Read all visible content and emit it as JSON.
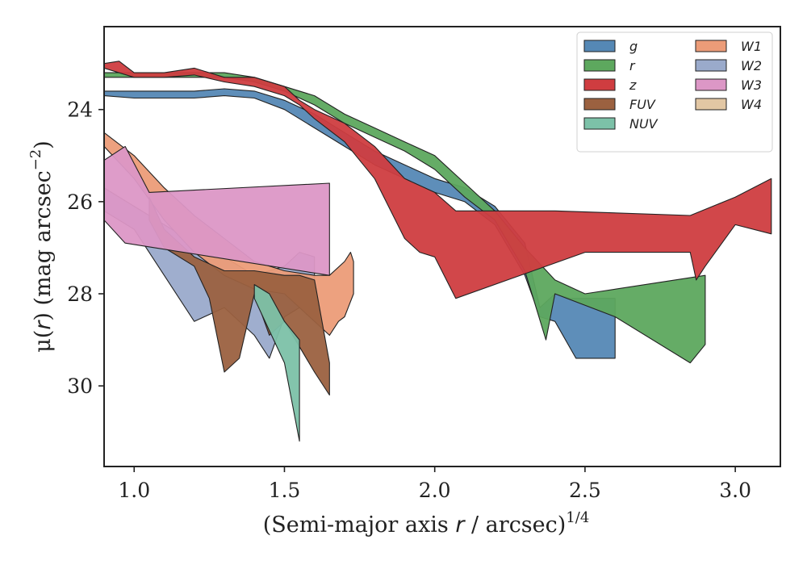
{
  "chart_data": {
    "type": "area",
    "title": "",
    "xlabel_parts": {
      "pre": "(Semi-major axis ",
      "var": "r",
      "post": " / arcsec)",
      "sup": "1/4"
    },
    "ylabel_parts": {
      "pre": "μ(",
      "var": "r",
      "post": ") (mag arcsec",
      "sup": "−2",
      "end": ")"
    },
    "xlim": [
      0.9,
      3.15
    ],
    "ylim": [
      31.75,
      22.2
    ],
    "y_inverted": true,
    "x_ticks": [
      1.0,
      1.5,
      2.0,
      2.5,
      3.0
    ],
    "x_tick_labels": [
      "1.0",
      "1.5",
      "2.0",
      "2.5",
      "3.0"
    ],
    "y_ticks": [
      24,
      26,
      28,
      30
    ],
    "y_tick_labels": [
      "24",
      "26",
      "28",
      "30"
    ],
    "grid": false,
    "legend": {
      "placement": "top-right",
      "columns": 2
    },
    "series": [
      {
        "name": "W4",
        "color": "#e2c7a4",
        "upper": [],
        "lower": []
      },
      {
        "name": "W2",
        "color": "#9aaacb",
        "upper": [
          [
            0.9,
            25.7
          ],
          [
            1.0,
            26.1
          ],
          [
            1.1,
            26.5
          ],
          [
            1.2,
            26.9
          ],
          [
            1.3,
            27.2
          ],
          [
            1.4,
            27.6
          ],
          [
            1.45,
            27.5
          ],
          [
            1.5,
            27.4
          ],
          [
            1.55,
            27.1
          ],
          [
            1.6,
            27.2
          ]
        ],
        "lower": [
          [
            1.6,
            28.0
          ],
          [
            1.55,
            28.3
          ],
          [
            1.5,
            28.5
          ],
          [
            1.45,
            29.4
          ],
          [
            1.4,
            28.9
          ],
          [
            1.3,
            28.3
          ],
          [
            1.2,
            28.6
          ],
          [
            1.1,
            27.6
          ],
          [
            1.0,
            26.6
          ],
          [
            0.9,
            26.2
          ]
        ]
      },
      {
        "name": "W1",
        "color": "#ec9c78",
        "upper": [
          [
            0.9,
            24.5
          ],
          [
            1.0,
            25.0
          ],
          [
            1.1,
            25.7
          ],
          [
            1.2,
            26.3
          ],
          [
            1.3,
            26.8
          ],
          [
            1.4,
            27.3
          ],
          [
            1.5,
            27.5
          ],
          [
            1.6,
            27.6
          ],
          [
            1.65,
            27.6
          ],
          [
            1.7,
            27.3
          ],
          [
            1.72,
            27.1
          ],
          [
            1.73,
            27.3
          ]
        ],
        "lower": [
          [
            1.73,
            28.0
          ],
          [
            1.7,
            28.5
          ],
          [
            1.68,
            28.6
          ],
          [
            1.65,
            28.9
          ],
          [
            1.6,
            28.6
          ],
          [
            1.5,
            28.0
          ],
          [
            1.4,
            27.9
          ],
          [
            1.3,
            27.6
          ],
          [
            1.2,
            27.1
          ],
          [
            1.1,
            26.4
          ],
          [
            1.0,
            25.5
          ],
          [
            0.9,
            24.8
          ]
        ]
      },
      {
        "name": "FUV",
        "color": "#9b6140",
        "upper": [
          [
            1.05,
            25.9
          ],
          [
            1.1,
            26.6
          ],
          [
            1.2,
            27.2
          ],
          [
            1.3,
            27.5
          ],
          [
            1.4,
            27.5
          ],
          [
            1.5,
            27.6
          ],
          [
            1.55,
            27.6
          ],
          [
            1.6,
            27.7
          ],
          [
            1.65,
            29.5
          ]
        ],
        "lower": [
          [
            1.65,
            30.2
          ],
          [
            1.6,
            29.7
          ],
          [
            1.5,
            28.6
          ],
          [
            1.45,
            28.9
          ],
          [
            1.4,
            28.0
          ],
          [
            1.35,
            29.4
          ],
          [
            1.3,
            29.7
          ],
          [
            1.25,
            28.1
          ],
          [
            1.2,
            27.4
          ],
          [
            1.1,
            27.0
          ],
          [
            1.05,
            26.4
          ]
        ]
      },
      {
        "name": "NUV",
        "color": "#7cc1a8",
        "upper": [
          [
            1.4,
            27.8
          ],
          [
            1.45,
            28.0
          ],
          [
            1.5,
            28.6
          ],
          [
            1.55,
            29.0
          ]
        ],
        "lower": [
          [
            1.55,
            31.2
          ],
          [
            1.5,
            29.5
          ],
          [
            1.45,
            28.8
          ],
          [
            1.4,
            28.1
          ]
        ]
      },
      {
        "name": "W3",
        "color": "#dc97c6",
        "upper": [
          [
            0.9,
            25.1
          ],
          [
            0.97,
            24.8
          ],
          [
            1.05,
            25.8
          ],
          [
            1.65,
            25.6
          ]
        ],
        "lower": [
          [
            1.65,
            27.6
          ],
          [
            0.97,
            26.9
          ],
          [
            0.9,
            26.4
          ]
        ]
      },
      {
        "name": "g",
        "color": "#5588b5",
        "upper": [
          [
            0.9,
            23.6
          ],
          [
            1.0,
            23.6
          ],
          [
            1.2,
            23.6
          ],
          [
            1.3,
            23.55
          ],
          [
            1.4,
            23.6
          ],
          [
            1.5,
            23.8
          ],
          [
            1.6,
            24.1
          ],
          [
            1.7,
            24.5
          ],
          [
            1.8,
            24.9
          ],
          [
            1.9,
            25.2
          ],
          [
            2.0,
            25.5
          ],
          [
            2.1,
            25.7
          ],
          [
            2.2,
            26.1
          ],
          [
            2.3,
            26.9
          ],
          [
            2.35,
            28.3
          ],
          [
            2.4,
            28.0
          ],
          [
            2.45,
            28.1
          ],
          [
            2.6,
            28.1
          ]
        ],
        "lower": [
          [
            2.6,
            29.4
          ],
          [
            2.47,
            29.4
          ],
          [
            2.4,
            28.6
          ],
          [
            2.35,
            28.5
          ],
          [
            2.3,
            27.6
          ],
          [
            2.2,
            26.5
          ],
          [
            2.1,
            26.0
          ],
          [
            2.0,
            25.8
          ],
          [
            1.9,
            25.5
          ],
          [
            1.8,
            25.2
          ],
          [
            1.7,
            24.8
          ],
          [
            1.6,
            24.4
          ],
          [
            1.5,
            24.0
          ],
          [
            1.4,
            23.75
          ],
          [
            1.3,
            23.7
          ],
          [
            1.2,
            23.75
          ],
          [
            1.0,
            23.75
          ],
          [
            0.9,
            23.7
          ]
        ]
      },
      {
        "name": "r",
        "color": "#5da85e",
        "upper": [
          [
            0.9,
            23.2
          ],
          [
            1.0,
            23.2
          ],
          [
            1.2,
            23.2
          ],
          [
            1.3,
            23.2
          ],
          [
            1.4,
            23.3
          ],
          [
            1.5,
            23.5
          ],
          [
            1.6,
            23.7
          ],
          [
            1.7,
            24.1
          ],
          [
            1.8,
            24.4
          ],
          [
            1.9,
            24.7
          ],
          [
            2.0,
            25.0
          ],
          [
            2.1,
            25.6
          ],
          [
            2.2,
            26.2
          ],
          [
            2.3,
            27.0
          ],
          [
            2.4,
            27.7
          ],
          [
            2.5,
            28.0
          ],
          [
            2.9,
            27.6
          ]
        ],
        "lower": [
          [
            2.9,
            29.1
          ],
          [
            2.85,
            29.5
          ],
          [
            2.6,
            28.5
          ],
          [
            2.4,
            28.0
          ],
          [
            2.37,
            29.0
          ],
          [
            2.3,
            27.5
          ],
          [
            2.2,
            26.4
          ],
          [
            2.1,
            25.9
          ],
          [
            2.0,
            25.3
          ],
          [
            1.9,
            24.9
          ],
          [
            1.8,
            24.6
          ],
          [
            1.7,
            24.3
          ],
          [
            1.6,
            23.9
          ],
          [
            1.5,
            23.6
          ],
          [
            1.4,
            23.4
          ],
          [
            1.3,
            23.3
          ],
          [
            1.2,
            23.3
          ],
          [
            1.0,
            23.3
          ],
          [
            0.9,
            23.3
          ]
        ]
      },
      {
        "name": "z",
        "color": "#cf3d40",
        "upper": [
          [
            0.9,
            23.0
          ],
          [
            0.95,
            22.95
          ],
          [
            1.0,
            23.2
          ],
          [
            1.1,
            23.2
          ],
          [
            1.2,
            23.1
          ],
          [
            1.3,
            23.3
          ],
          [
            1.4,
            23.3
          ],
          [
            1.5,
            23.5
          ],
          [
            1.55,
            23.8
          ],
          [
            1.6,
            24.0
          ],
          [
            1.7,
            24.3
          ],
          [
            1.8,
            24.8
          ],
          [
            1.9,
            25.5
          ],
          [
            2.0,
            25.8
          ],
          [
            2.07,
            26.2
          ],
          [
            2.4,
            26.2
          ],
          [
            2.85,
            26.3
          ],
          [
            3.0,
            25.9
          ],
          [
            3.12,
            25.5
          ]
        ],
        "lower": [
          [
            3.12,
            26.7
          ],
          [
            3.0,
            26.5
          ],
          [
            2.9,
            27.4
          ],
          [
            2.87,
            27.7
          ],
          [
            2.85,
            27.1
          ],
          [
            2.5,
            27.1
          ],
          [
            2.07,
            28.1
          ],
          [
            2.0,
            27.2
          ],
          [
            1.95,
            27.1
          ],
          [
            1.9,
            26.8
          ],
          [
            1.8,
            25.5
          ],
          [
            1.7,
            24.7
          ],
          [
            1.6,
            24.2
          ],
          [
            1.55,
            23.9
          ],
          [
            1.5,
            23.7
          ],
          [
            1.4,
            23.5
          ],
          [
            1.3,
            23.4
          ],
          [
            1.2,
            23.25
          ],
          [
            1.1,
            23.3
          ],
          [
            1.0,
            23.3
          ],
          [
            0.9,
            23.1
          ]
        ]
      }
    ]
  }
}
